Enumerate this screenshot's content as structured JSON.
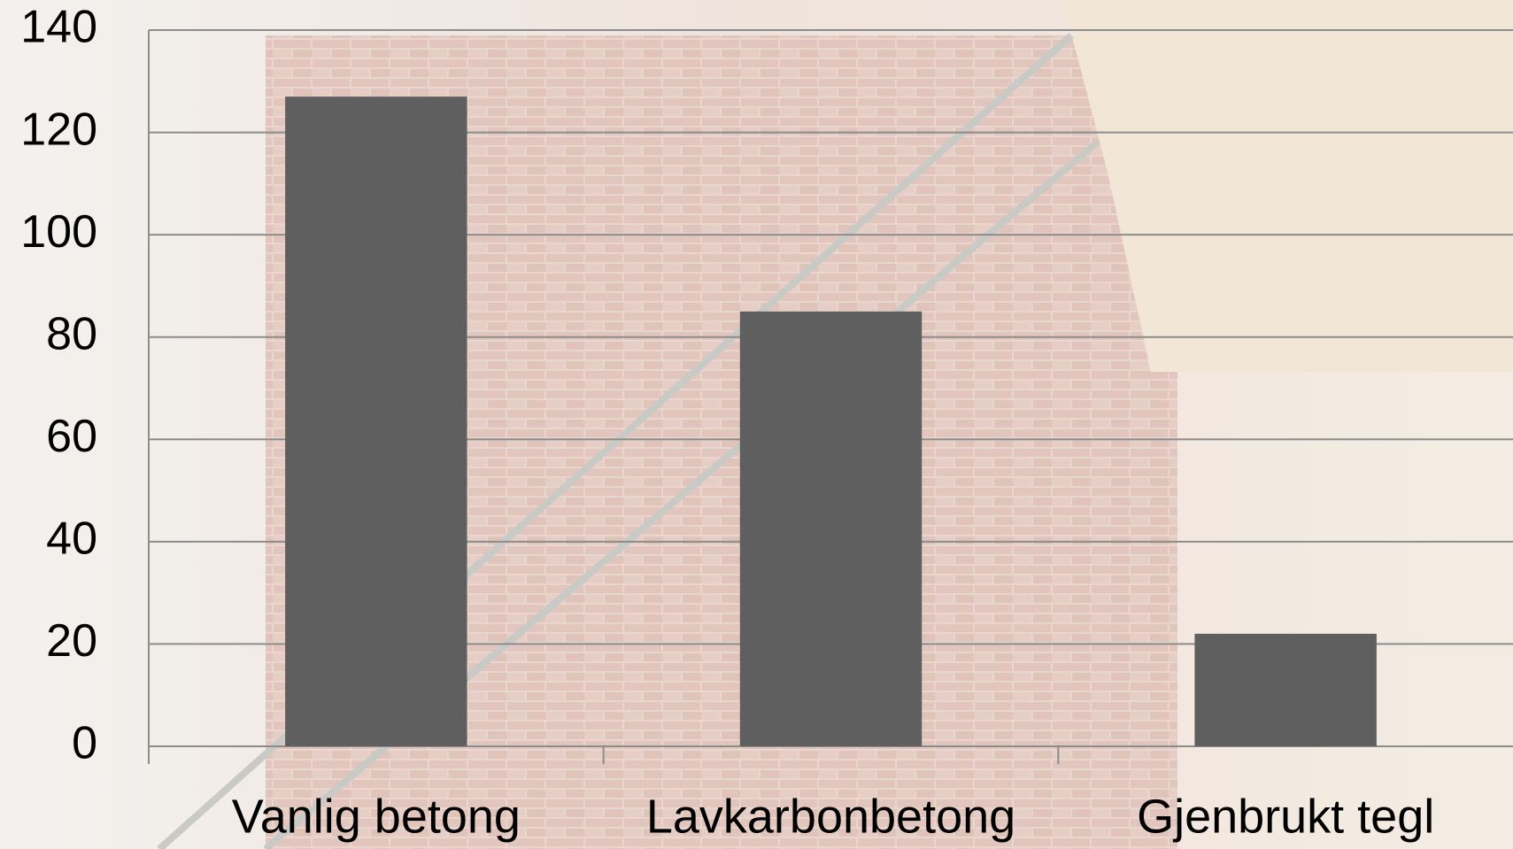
{
  "chart_data": {
    "type": "bar",
    "categories": [
      "Vanlig betong",
      "Lavkarbonbetong",
      "Gjenbrukt tegl"
    ],
    "values": [
      127,
      85,
      22
    ],
    "color": "#5f5f5f",
    "ylim": [
      0,
      140
    ],
    "yticks": [
      0,
      20,
      40,
      60,
      80,
      100,
      120,
      140
    ],
    "grid": true
  }
}
